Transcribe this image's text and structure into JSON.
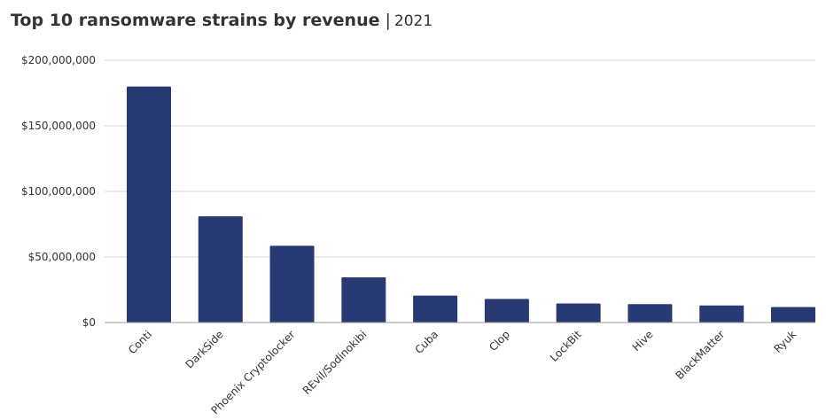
{
  "title": {
    "main": "Top 10 ransomware strains by revenue",
    "separator": "|",
    "subtitle": "2021"
  },
  "chart_data": {
    "type": "bar",
    "title": "Top 10 ransomware strains by revenue",
    "subtitle": "2021",
    "xlabel": "",
    "ylabel": "",
    "categories": [
      "Conti",
      "DarkSide",
      "Phoenix Cryptolocker",
      "REvil/Sodinokibi",
      "Cuba",
      "Clop",
      "LockBit",
      "Hive",
      "BlackMatter",
      "Ryuk"
    ],
    "values": [
      180000000,
      81000000,
      58500000,
      34500000,
      20500000,
      18000000,
      14500000,
      14000000,
      13000000,
      11800000
    ],
    "ylim": [
      0,
      200000000
    ],
    "yticks": [
      0,
      50000000,
      100000000,
      150000000,
      200000000
    ],
    "ytick_labels": [
      "$0",
      "$50,000,000",
      "$100,000,000",
      "$150,000,000",
      "$200,000,000"
    ],
    "grid": true,
    "bar_color": "#283a73",
    "grid_color": "#d9d9d9",
    "axis_color": "#999999",
    "text_color": "#333333"
  }
}
